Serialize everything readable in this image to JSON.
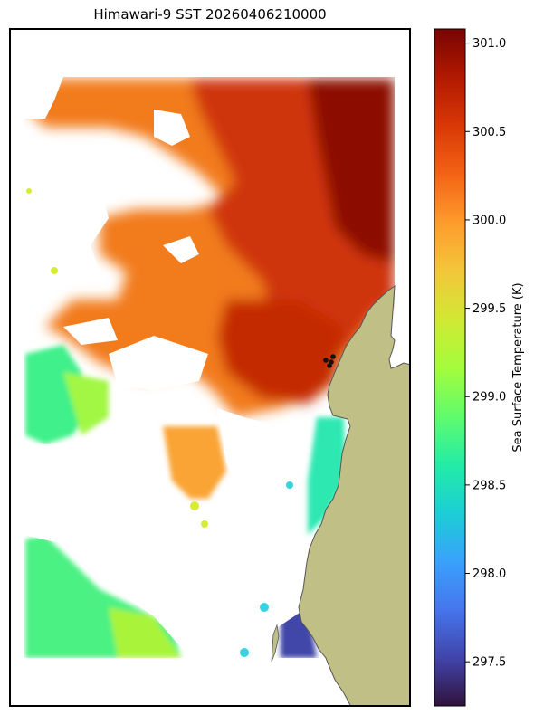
{
  "title": "Himawari-9 SST 20260406210000",
  "colorbar": {
    "label": "Sea Surface Temperature (K)",
    "min": 297.25,
    "max": 301.08,
    "ticks": [
      "297.5",
      "298.0",
      "298.5",
      "299.0",
      "299.5",
      "300.0",
      "300.5",
      "301.0"
    ],
    "tick_values": [
      297.5,
      298.0,
      298.5,
      299.0,
      299.5,
      300.0,
      300.5,
      301.0
    ],
    "colormap": "turbo",
    "stops": [
      "#30123b",
      "#4145ab",
      "#4675ed",
      "#39a2fc",
      "#1bcfd4",
      "#24eca6",
      "#61fc6c",
      "#a4fc3b",
      "#d1e834",
      "#f3c63a",
      "#fe9b2d",
      "#f36315",
      "#d93806",
      "#b11901",
      "#7a0402"
    ]
  },
  "map": {
    "land_color": "#bfbf86",
    "coast_color": "#555555",
    "missing_color": "#ffffff",
    "markers": {
      "color": "#111111",
      "count": 4
    }
  }
}
